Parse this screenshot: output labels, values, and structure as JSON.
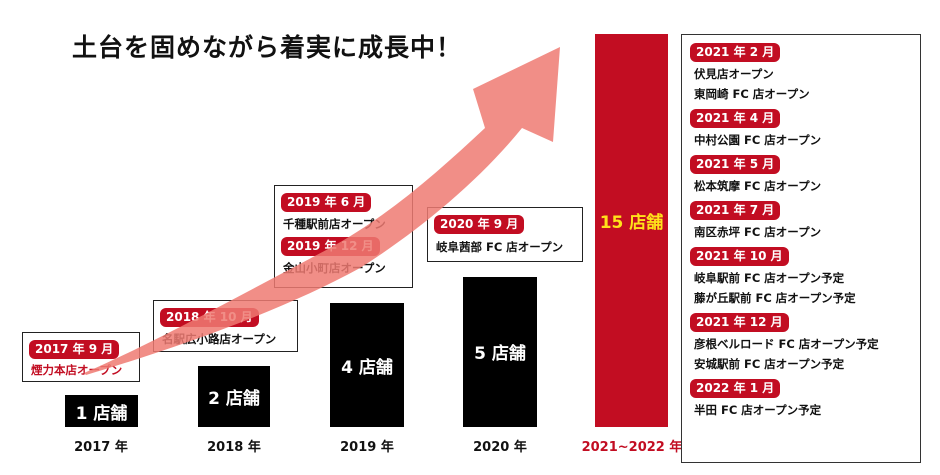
{
  "title": "土台を固めながら着実に成長中！",
  "colors": {
    "accent_red": "#c20d22",
    "bar_black": "#000000",
    "arrow_pink": "#ee7a72",
    "highlight_yellow": "#ffe21a"
  },
  "chart_data": {
    "type": "bar",
    "title": "土台を固めながら着実に成長中！",
    "categories": [
      "2017 年",
      "2018 年",
      "2019 年",
      "2020 年",
      "2021~2022 年"
    ],
    "values": [
      1,
      2,
      4,
      5,
      15
    ],
    "value_labels": [
      "1 店舗",
      "2 店舗",
      "4 店舗",
      "5 店舗",
      "15 店舗"
    ],
    "unit": "店舗",
    "xlabel": "",
    "ylabel": "",
    "grid": false,
    "highlight_category": "2021~2022 年"
  },
  "milestones": [
    {
      "year": "2017",
      "entries": [
        {
          "date": "2017 年 9 月",
          "stores": [
            "煙力本店オープン"
          ]
        }
      ]
    },
    {
      "year": "2018",
      "entries": [
        {
          "date": "2018 年 10 月",
          "stores": [
            "名駅広小路店オープン"
          ]
        }
      ]
    },
    {
      "year": "2019",
      "entries": [
        {
          "date": "2019 年 6 月",
          "stores": [
            "千種駅前店オープン"
          ]
        },
        {
          "date": "2019 年 12 月",
          "stores": [
            "金山小町店オープン"
          ]
        }
      ]
    },
    {
      "year": "2020",
      "entries": [
        {
          "date": "2020 年 9 月",
          "stores": [
            "岐阜茜部 FC 店オープン"
          ]
        }
      ]
    }
  ],
  "panel": {
    "entries": [
      {
        "date": "2021 年 2 月",
        "stores": [
          "伏見店オープン",
          "東岡崎 FC 店オープン"
        ]
      },
      {
        "date": "2021 年 4 月",
        "stores": [
          "中村公園 FC 店オープン"
        ]
      },
      {
        "date": "2021 年 5 月",
        "stores": [
          "松本筑摩 FC 店オープン"
        ]
      },
      {
        "date": "2021 年 7 月",
        "stores": [
          "南区赤坪 FC 店オープン"
        ]
      },
      {
        "date": "2021 年 10 月",
        "stores": [
          "岐阜駅前 FC 店オープン予定",
          "藤が丘駅前 FC 店オープン予定"
        ]
      },
      {
        "date": "2021 年 12 月",
        "stores": [
          "彦根ベルロード FC 店オープン予定",
          "安城駅前 FC 店オープン予定"
        ]
      },
      {
        "date": "2022 年 1 月",
        "stores": [
          "半田 FC 店オープン予定"
        ]
      }
    ]
  }
}
